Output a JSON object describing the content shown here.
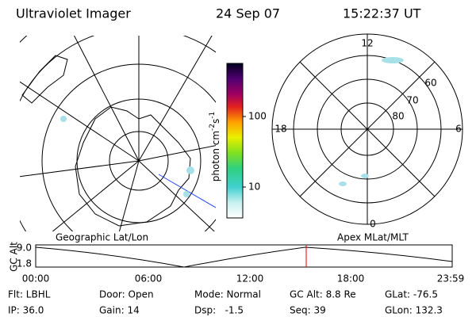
{
  "header": {
    "instrument": "Ultraviolet Imager",
    "date": "24 Sep 07",
    "time": "15:22:37 UT"
  },
  "colorbar": {
    "label": {
      "unit1": "photon cm",
      "exp1": "-2",
      "unit2": "s",
      "exp2": "-1"
    },
    "ticks": [
      "100",
      "10"
    ]
  },
  "polar": {
    "mlt_labels": [
      "12",
      "18",
      "6",
      "0"
    ],
    "lat_labels": [
      "60",
      "70",
      "80"
    ]
  },
  "timeline": {
    "left_title": "Geographic Lat/Lon",
    "right_title": "Apex MLat/MLT",
    "axis_label": "GC Alt",
    "y_labels": [
      "9.0",
      "1.8"
    ],
    "x_labels": [
      "00:00",
      "06:00",
      "12:00",
      "18:00",
      "23:59"
    ]
  },
  "status": {
    "rows": [
      [
        "Flt: LBHL",
        "Door: Open",
        "Mode: Normal",
        "GC Alt: 8.8 Re",
        "GLat: -76.5"
      ],
      [
        "IP: 36.0",
        "Gain: 14",
        "Dsp:   -1.5",
        "Seq: 39",
        "GLon: 132.3"
      ]
    ]
  }
}
